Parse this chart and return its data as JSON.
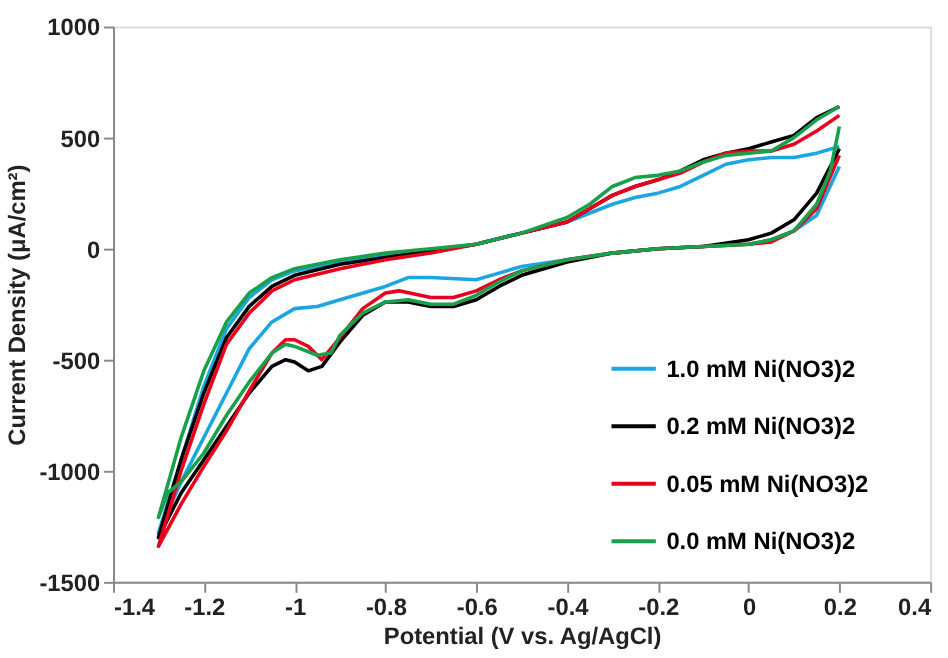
{
  "chart_data": {
    "type": "line",
    "xlabel": "Potential (V vs. Ag/AgCl)",
    "ylabel": "Current Density (μA/cm²)",
    "xlim": [
      -1.4,
      0.4
    ],
    "xticks": [
      -1.4,
      -1.2,
      -1,
      -0.8,
      -0.6,
      -0.4,
      -0.2,
      0,
      0.2,
      0.4
    ],
    "ylim": [
      -1500,
      1000
    ],
    "yticks": [
      -1500,
      -1000,
      -500,
      0,
      500,
      1000
    ],
    "grid": false,
    "legend": "right",
    "marker": "none",
    "line_style": "solid",
    "series": [
      {
        "name": "1.0 mM Ni(NO3)2",
        "color": "#1aa6e0",
        "x": [
          0.2,
          0.15,
          0.1,
          0.05,
          0,
          -0.05,
          -0.1,
          -0.15,
          -0.2,
          -0.25,
          -0.3,
          -0.4,
          -0.5,
          -0.6,
          -0.7,
          -0.8,
          -0.9,
          -1.0,
          -1.05,
          -1.1,
          -1.15,
          -1.2,
          -1.25,
          -1.3,
          -1.25,
          -1.2,
          -1.15,
          -1.1,
          -1.05,
          -1.0,
          -0.95,
          -0.9,
          -0.8,
          -0.75,
          -0.7,
          -0.6,
          -0.55,
          -0.5,
          -0.4,
          -0.3,
          -0.2,
          -0.1,
          0,
          0.05,
          0.1,
          0.15,
          0.2
        ],
        "values": [
          460,
          430,
          410,
          410,
          400,
          380,
          330,
          280,
          250,
          230,
          200,
          120,
          70,
          20,
          -10,
          -30,
          -60,
          -100,
          -140,
          -220,
          -360,
          -620,
          -950,
          -1280,
          -1050,
          -850,
          -650,
          -450,
          -330,
          -270,
          -260,
          -230,
          -170,
          -130,
          -130,
          -140,
          -110,
          -80,
          -50,
          -20,
          0,
          10,
          20,
          40,
          80,
          150,
          370
        ]
      },
      {
        "name": "0.2 mM Ni(NO3)2",
        "color": "#000000",
        "x": [
          0.2,
          0.15,
          0.1,
          0.05,
          0,
          -0.05,
          -0.1,
          -0.15,
          -0.2,
          -0.25,
          -0.3,
          -0.4,
          -0.5,
          -0.6,
          -0.7,
          -0.8,
          -0.9,
          -1.0,
          -1.05,
          -1.1,
          -1.15,
          -1.2,
          -1.25,
          -1.3,
          -1.25,
          -1.2,
          -1.15,
          -1.1,
          -1.05,
          -1.02,
          -1.0,
          -0.97,
          -0.94,
          -0.9,
          -0.85,
          -0.8,
          -0.75,
          -0.7,
          -0.65,
          -0.6,
          -0.55,
          -0.5,
          -0.4,
          -0.3,
          -0.2,
          -0.1,
          0,
          0.05,
          0.1,
          0.15,
          0.2
        ],
        "values": [
          640,
          590,
          510,
          480,
          450,
          430,
          400,
          350,
          310,
          280,
          240,
          120,
          70,
          20,
          -10,
          -40,
          -70,
          -120,
          -170,
          -260,
          -400,
          -650,
          -950,
          -1300,
          -1100,
          -950,
          -800,
          -650,
          -530,
          -500,
          -510,
          -550,
          -530,
          -420,
          -300,
          -240,
          -240,
          -260,
          -260,
          -230,
          -170,
          -120,
          -60,
          -20,
          0,
          10,
          40,
          70,
          130,
          250,
          450
        ]
      },
      {
        "name": "0.05 mM Ni(NO3)2",
        "color": "#e8001c",
        "x": [
          0.2,
          0.15,
          0.1,
          0.05,
          0,
          -0.05,
          -0.1,
          -0.15,
          -0.2,
          -0.25,
          -0.3,
          -0.4,
          -0.5,
          -0.6,
          -0.7,
          -0.8,
          -0.9,
          -1.0,
          -1.05,
          -1.1,
          -1.15,
          -1.2,
          -1.25,
          -1.3,
          -1.25,
          -1.2,
          -1.15,
          -1.1,
          -1.05,
          -1.02,
          -1.0,
          -0.97,
          -0.94,
          -0.9,
          -0.85,
          -0.8,
          -0.77,
          -0.7,
          -0.65,
          -0.6,
          -0.55,
          -0.5,
          -0.4,
          -0.3,
          -0.2,
          -0.1,
          0,
          0.05,
          0.1,
          0.15,
          0.2
        ],
        "values": [
          600,
          530,
          470,
          440,
          440,
          430,
          390,
          340,
          310,
          280,
          240,
          120,
          70,
          20,
          -20,
          -50,
          -90,
          -140,
          -190,
          -290,
          -430,
          -700,
          -1000,
          -1340,
          -1150,
          -980,
          -820,
          -640,
          -470,
          -410,
          -410,
          -440,
          -500,
          -400,
          -270,
          -200,
          -190,
          -220,
          -220,
          -190,
          -140,
          -100,
          -50,
          -20,
          0,
          10,
          20,
          30,
          80,
          180,
          420
        ]
      },
      {
        "name": "0.0 mM Ni(NO3)2",
        "color": "#18a04a",
        "x": [
          0.2,
          0.15,
          0.1,
          0.05,
          0,
          -0.05,
          -0.1,
          -0.15,
          -0.2,
          -0.25,
          -0.3,
          -0.35,
          -0.4,
          -0.5,
          -0.6,
          -0.7,
          -0.8,
          -0.9,
          -1.0,
          -1.05,
          -1.1,
          -1.15,
          -1.2,
          -1.25,
          -1.3,
          -1.28,
          -1.25,
          -1.2,
          -1.15,
          -1.1,
          -1.05,
          -1.02,
          -1.0,
          -0.95,
          -0.92,
          -0.9,
          -0.85,
          -0.8,
          -0.75,
          -0.7,
          -0.65,
          -0.6,
          -0.55,
          -0.5,
          -0.4,
          -0.3,
          -0.2,
          -0.1,
          0,
          0.05,
          0.1,
          0.15,
          0.18,
          0.2
        ],
        "values": [
          640,
          580,
          500,
          440,
          430,
          420,
          390,
          350,
          330,
          320,
          280,
          200,
          140,
          70,
          20,
          0,
          -20,
          -50,
          -90,
          -130,
          -200,
          -330,
          -550,
          -850,
          -1210,
          -1100,
          -1050,
          -920,
          -750,
          -600,
          -470,
          -430,
          -440,
          -480,
          -470,
          -390,
          -290,
          -240,
          -230,
          -250,
          -250,
          -210,
          -150,
          -100,
          -50,
          -20,
          0,
          10,
          20,
          40,
          80,
          200,
          350,
          550
        ]
      }
    ]
  }
}
